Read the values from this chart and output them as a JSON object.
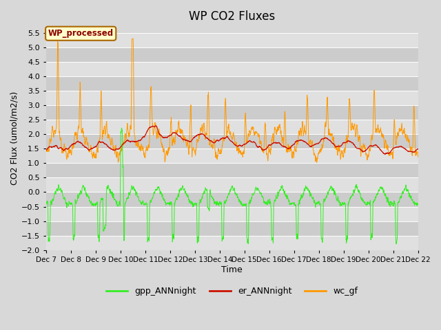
{
  "title": "WP CO2 Fluxes",
  "xlabel": "Time",
  "ylabel": "CO2 Flux (umol/m2/s)",
  "ylim": [
    -2.0,
    5.75
  ],
  "yticks": [
    -2.0,
    -1.5,
    -1.0,
    -0.5,
    0.0,
    0.5,
    1.0,
    1.5,
    2.0,
    2.5,
    3.0,
    3.5,
    4.0,
    4.5,
    5.0,
    5.5
  ],
  "gpp_color": "#33ee22",
  "er_color": "#cc1100",
  "wc_color": "#ff9900",
  "legend_labels": [
    "gpp_ANNnight",
    "er_ANNnight",
    "wc_gf"
  ],
  "box_label": "WP_processed",
  "box_text_color": "#8B0000",
  "box_bg_color": "#ffffcc",
  "box_edge_color": "#aa6600",
  "fig_bg_color": "#d8d8d8",
  "plot_bg_color": "#d8d8d8",
  "band_color_light": "#e0e0e0",
  "band_color_dark": "#cccccc",
  "n_points": 2160,
  "start_day": 7,
  "end_day": 22,
  "title_fontsize": 12,
  "axis_label_fontsize": 9,
  "tick_fontsize": 8,
  "legend_fontsize": 9
}
